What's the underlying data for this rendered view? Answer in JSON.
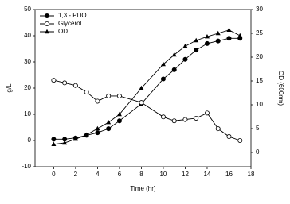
{
  "chart_data": {
    "type": "line",
    "x_label": "Time (hr)",
    "y_label": "g/L",
    "y2_label": "OD (600nm)",
    "x": [
      0,
      1,
      2,
      3,
      4,
      5,
      6,
      8,
      10,
      11,
      12,
      13,
      14,
      15,
      16,
      17
    ],
    "series": [
      {
        "name": "1,3 - PDO",
        "color": "#000000",
        "marker": "filled-circle",
        "values": [
          0.5,
          0.5,
          1,
          2,
          3,
          4.5,
          7.5,
          14,
          23.5,
          27,
          31,
          34.5,
          37,
          38,
          39,
          39
        ]
      },
      {
        "name": "Glycerol",
        "color": "#000000",
        "marker": "open-circle",
        "values": [
          23,
          22,
          21,
          18.5,
          15,
          17,
          17,
          14.5,
          9,
          7.5,
          8,
          8.5,
          10.5,
          4.5,
          1.5,
          0
        ]
      },
      {
        "name": "OD",
        "color": "#000000",
        "marker": "triangle",
        "axis": "y2",
        "values": [
          1.7,
          2,
          2.8,
          3.7,
          5,
          6.3,
          8,
          13.5,
          18.5,
          20.5,
          22.3,
          23.5,
          24.3,
          25,
          25.7,
          24.5
        ]
      }
    ],
    "xlim": [
      -1.7,
      18
    ],
    "xticks": [
      0,
      2,
      4,
      6,
      8,
      10,
      12,
      14,
      16,
      18
    ],
    "ylim": [
      -10,
      50
    ],
    "yticks": [
      -10,
      0,
      10,
      20,
      30,
      40,
      50
    ],
    "y2lim": [
      -3,
      30
    ],
    "y2ticks": [
      0,
      5,
      10,
      15,
      20,
      25,
      30
    ],
    "legend": "upper-left"
  }
}
